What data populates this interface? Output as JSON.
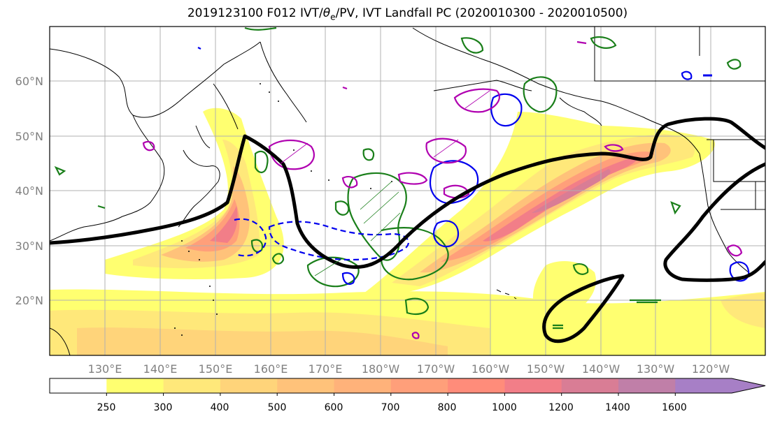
{
  "title": {
    "prefix": "2019123100 F012 IVT/",
    "theta": "θ",
    "theta_sub": "e",
    "suffix": "/PV, IVT Landfall PC (2020010300 - 2020010500)"
  },
  "map": {
    "lon_labels": [
      "130°E",
      "140°E",
      "150°E",
      "160°E",
      "170°E",
      "180°W",
      "170°W",
      "160°W",
      "150°W",
      "140°W",
      "130°W",
      "120°W"
    ],
    "lat_labels": [
      "60°N",
      "50°N",
      "40°N",
      "30°N",
      "20°N"
    ],
    "lon_range": [
      120,
      250
    ],
    "lat_range": [
      10,
      70
    ],
    "contour_colors": {
      "landfall_pc": "#000000",
      "theta_e": "#1a7f1a",
      "pv_negative": "#0000ee",
      "pv_positive": "#b000b0"
    }
  },
  "colorbar": {
    "ticks": [
      "250",
      "300",
      "400",
      "500",
      "600",
      "700",
      "800",
      "1000",
      "1200",
      "1400",
      "1600"
    ],
    "colors": [
      "#ffffff",
      "#ffff70",
      "#ffe87a",
      "#ffd47a",
      "#ffc27a",
      "#ffb27a",
      "#ff9f7a",
      "#ff8c7a",
      "#f27e88",
      "#d97d95",
      "#c07fa8",
      "#a77fc6"
    ]
  }
}
